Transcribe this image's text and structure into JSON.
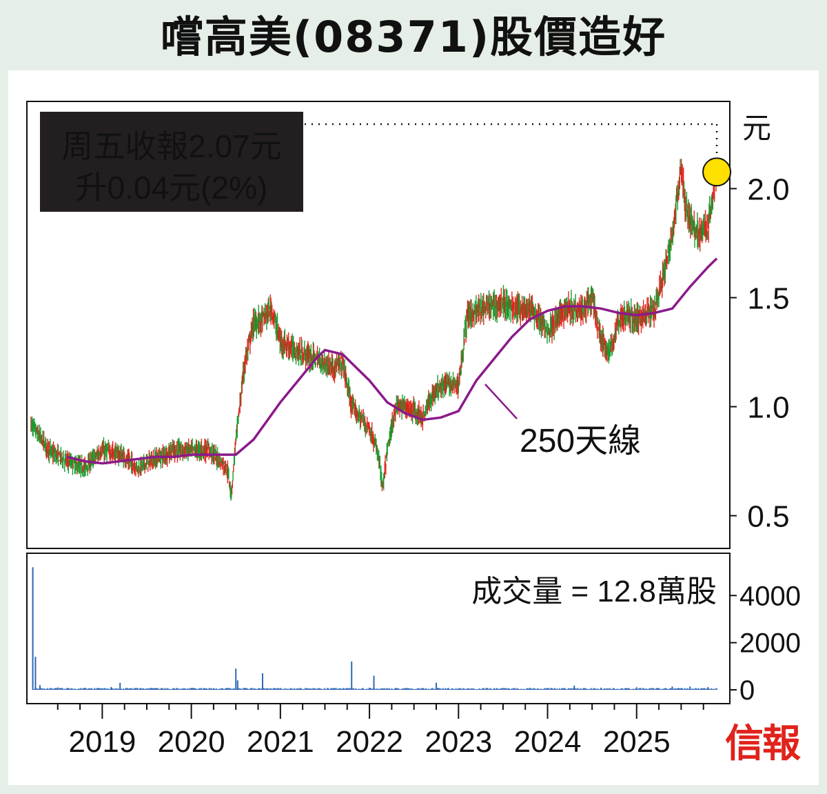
{
  "title": "嚐高美(08371)股價造好",
  "annotation": {
    "line1": "周五收報2.07元",
    "line2": "升0.04元(2%)"
  },
  "ma_label": "250天線",
  "volume_label": "成交量 = 12.8萬股",
  "source": "信報",
  "colors": {
    "up": "#e0231b",
    "down": "#1a9a2f",
    "ma": "#8b1a8b",
    "volume": "#2e68b5",
    "highlight": "#ffe000"
  },
  "chart_data": [
    {
      "type": "candlestick",
      "yunit": "元",
      "yticks": [
        "0.5",
        "1.0",
        "1.5",
        "2.0"
      ],
      "ylim": [
        0.35,
        2.4
      ],
      "xticks": [
        "2019",
        "2020",
        "2021",
        "2022",
        "2023",
        "2024",
        "2025"
      ],
      "xlim": [
        2018.2,
        2026.0
      ],
      "last_close": 2.07,
      "change": 0.04,
      "change_pct": 2,
      "series": [
        {
          "name": "",
          "x": [
            2018.2,
            2018.4,
            2018.6,
            2018.8,
            2019.0,
            2019.2,
            2019.4,
            2019.6,
            2019.8,
            2020.0,
            2020.2,
            2020.4,
            2020.45,
            2020.5,
            2020.6,
            2020.7,
            2020.8,
            2020.9,
            2021.0,
            2021.2,
            2021.4,
            2021.6,
            2021.7,
            2021.8,
            2021.9,
            2022.0,
            2022.1,
            2022.15,
            2022.2,
            2022.3,
            2022.4,
            2022.5,
            2022.6,
            2022.7,
            2022.8,
            2022.9,
            2023.0,
            2023.1,
            2023.3,
            2023.5,
            2023.6,
            2023.8,
            2024.0,
            2024.2,
            2024.4,
            2024.5,
            2024.6,
            2024.7,
            2024.8,
            2024.9,
            2025.0,
            2025.2,
            2025.3,
            2025.4,
            2025.5,
            2025.55,
            2025.6,
            2025.7,
            2025.8,
            2025.9
          ],
          "values": [
            0.92,
            0.8,
            0.75,
            0.72,
            0.8,
            0.78,
            0.72,
            0.76,
            0.8,
            0.8,
            0.8,
            0.72,
            0.6,
            0.85,
            1.2,
            1.38,
            1.4,
            1.45,
            1.3,
            1.25,
            1.22,
            1.18,
            1.2,
            1.0,
            0.95,
            0.9,
            0.78,
            0.62,
            0.8,
            1.0,
            1.0,
            0.98,
            0.95,
            1.05,
            1.1,
            1.1,
            1.1,
            1.42,
            1.45,
            1.48,
            1.45,
            1.45,
            1.35,
            1.45,
            1.45,
            1.5,
            1.3,
            1.25,
            1.4,
            1.42,
            1.4,
            1.45,
            1.6,
            1.78,
            2.1,
            1.9,
            1.85,
            1.8,
            1.82,
            2.07
          ]
        },
        {
          "name": "250天線",
          "x": [
            2018.6,
            2018.8,
            2019.0,
            2019.2,
            2019.4,
            2019.6,
            2019.8,
            2020.0,
            2020.2,
            2020.4,
            2020.5,
            2020.7,
            2021.0,
            2021.2,
            2021.4,
            2021.5,
            2021.7,
            2022.0,
            2022.2,
            2022.4,
            2022.6,
            2022.8,
            2023.0,
            2023.2,
            2023.4,
            2023.6,
            2023.8,
            2024.0,
            2024.2,
            2024.4,
            2024.6,
            2024.8,
            2025.0,
            2025.2,
            2025.4,
            2025.6,
            2025.8,
            2025.9
          ],
          "values": [
            0.77,
            0.75,
            0.74,
            0.75,
            0.76,
            0.77,
            0.77,
            0.78,
            0.78,
            0.78,
            0.78,
            0.85,
            1.02,
            1.12,
            1.22,
            1.26,
            1.24,
            1.12,
            1.02,
            0.97,
            0.94,
            0.95,
            0.98,
            1.12,
            1.22,
            1.32,
            1.4,
            1.44,
            1.46,
            1.46,
            1.45,
            1.43,
            1.42,
            1.43,
            1.45,
            1.55,
            1.64,
            1.68
          ]
        }
      ]
    },
    {
      "type": "bar",
      "yticks": [
        "0",
        "2000",
        "4000"
      ],
      "ylim": [
        0,
        5500
      ],
      "xlim": [
        2018.2,
        2026.0
      ],
      "series": [
        {
          "name": "成交量",
          "x": [
            2018.22,
            2018.25,
            2018.3,
            2018.5,
            2018.8,
            2019.1,
            2019.2,
            2019.6,
            2020.0,
            2020.4,
            2020.5,
            2020.52,
            2020.8,
            2021.2,
            2021.6,
            2021.75,
            2021.8,
            2022.0,
            2022.05,
            2022.3,
            2022.6,
            2022.75,
            2023.0,
            2023.4,
            2023.8,
            2024.3,
            2024.6,
            2025.0,
            2025.4,
            2025.6,
            2025.8
          ],
          "values": [
            5200,
            1400,
            200,
            100,
            80,
            120,
            300,
            80,
            60,
            80,
            900,
            400,
            700,
            60,
            80,
            80,
            1200,
            90,
            600,
            80,
            70,
            300,
            60,
            70,
            90,
            180,
            90,
            110,
            140,
            140,
            120
          ]
        }
      ]
    }
  ]
}
